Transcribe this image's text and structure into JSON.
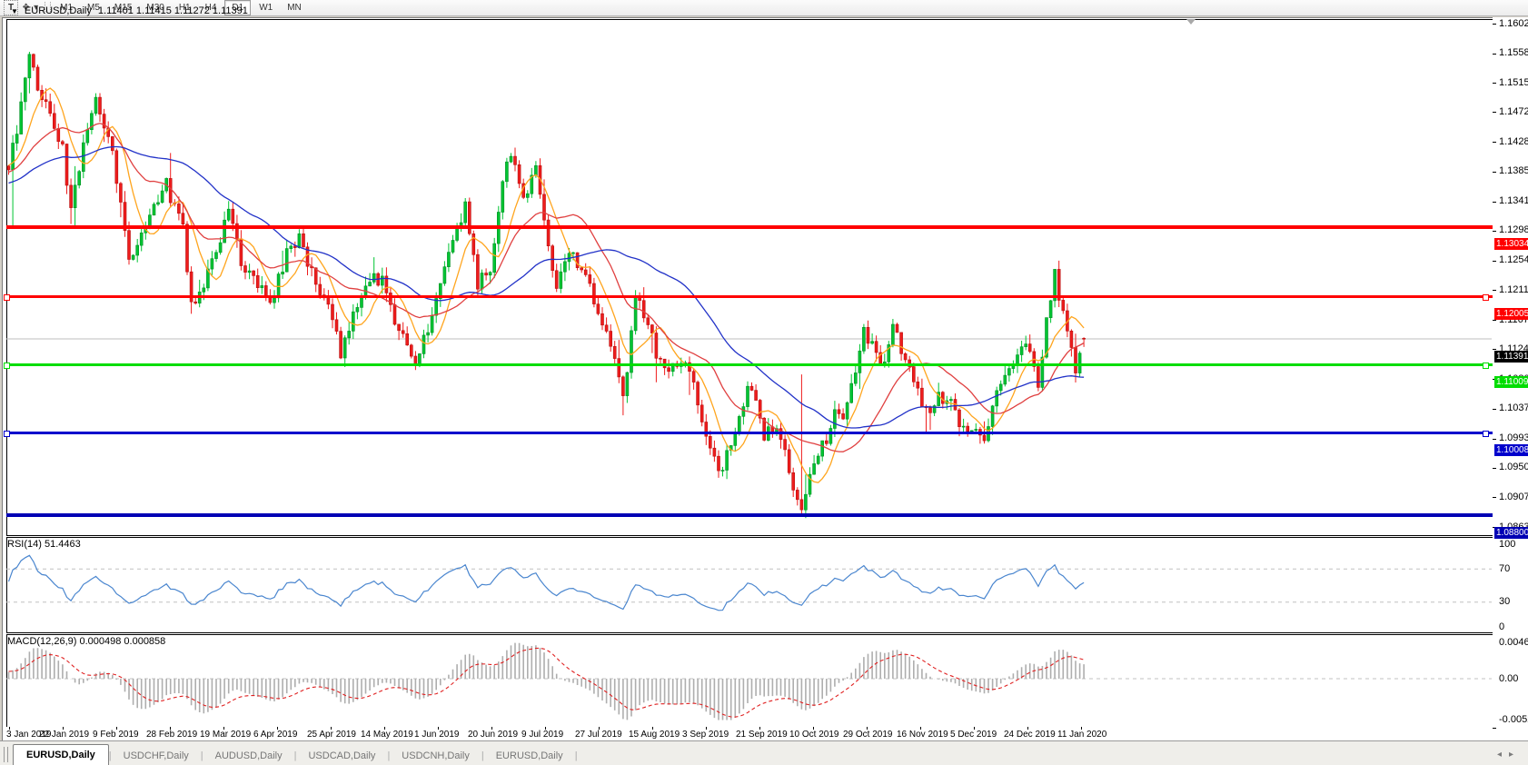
{
  "toolbar": {
    "text_tool_label": "T",
    "symbols_icon": "❖",
    "dropdown_caret": "▾",
    "timeframes": [
      "M1",
      "M5",
      "M15",
      "M30",
      "H1",
      "H4",
      "D1",
      "W1",
      "MN"
    ],
    "active_timeframe": "D1"
  },
  "chart_title": {
    "caret": "▼",
    "symbol": "EURUSD,Daily",
    "ohlc_text": "1.11401 1.11415 1.11272 1.11391"
  },
  "price_axis_ticks": [
    "1.16020",
    "1.15580",
    "1.15150",
    "1.14720",
    "1.14280",
    "1.13850",
    "1.13410",
    "1.12980",
    "1.12540",
    "1.12110",
    "1.11670",
    "1.11240",
    "1.10800",
    "1.10370",
    "1.09930",
    "1.09500",
    "1.09070",
    "1.08630"
  ],
  "rsi_pane": {
    "label": "RSI(14) 51.4463",
    "ticks": [
      "100",
      "70",
      "30",
      "0"
    ],
    "tick_values": [
      100,
      70,
      30,
      0
    ],
    "level_lines": [
      70,
      30
    ],
    "line_color": "#4a86cf",
    "current_value": 51.4463
  },
  "macd_pane": {
    "label": "MACD(12,26,9) 0.000498 0.000858",
    "ticks": [
      "0.00463",
      "0.00",
      "-0.00529"
    ],
    "tick_values": [
      0.00463,
      0.0,
      -0.00529
    ],
    "histogram_color": "#aeaeae",
    "signal_color": "#e02020",
    "current_main": 0.000498,
    "current_signal": 0.000858
  },
  "date_axis": {
    "labels": [
      "3 Jan 2019",
      "22 Jan 2019",
      "9 Feb 2019",
      "28 Feb 2019",
      "19 Mar 2019",
      "6 Apr 2019",
      "25 Apr 2019",
      "14 May 2019",
      "1 Jun 2019",
      "20 Jun 2019",
      "9 Jul 2019",
      "27 Jul 2019",
      "15 Aug 2019",
      "3 Sep 2019",
      "21 Sep 2019",
      "10 Oct 2019",
      "29 Oct 2019",
      "16 Nov 2019",
      "5 Dec 2019",
      "24 Dec 2019",
      "11 Jan 2020"
    ]
  },
  "tabs": {
    "items": [
      "EURUSD,Daily",
      "USDCHF,Daily",
      "AUDUSD,Daily",
      "USDCAD,Daily",
      "USDCNH,Daily",
      "EURUSD,Daily"
    ],
    "active_index": 0,
    "scroll_left": "◂",
    "scroll_right": "▸"
  },
  "chart_data": {
    "type": "candlestick_with_indicators",
    "symbol": "EURUSD",
    "timeframe": "Daily",
    "ohlc_display": {
      "open": 1.11401,
      "high": 1.11415,
      "low": 1.11272,
      "close": 1.11391
    },
    "price_axis_range": [
      1.0863,
      1.1602
    ],
    "bars": 260,
    "up_color": "#00c432",
    "up_border": "#008f24",
    "down_color": "#ee1c1c",
    "down_border": "#b80f0f",
    "price_path": [
      [
        0,
        1.1395
      ],
      [
        2,
        1.144
      ],
      [
        5,
        1.1555
      ],
      [
        7,
        1.15
      ],
      [
        10,
        1.1475
      ],
      [
        13,
        1.142
      ],
      [
        15,
        1.133
      ],
      [
        18,
        1.142
      ],
      [
        21,
        1.149
      ],
      [
        25,
        1.1405
      ],
      [
        29,
        1.1255
      ],
      [
        33,
        1.13
      ],
      [
        38,
        1.1365
      ],
      [
        42,
        1.1305
      ],
      [
        44,
        1.1185
      ],
      [
        49,
        1.125
      ],
      [
        53,
        1.133
      ],
      [
        56,
        1.125
      ],
      [
        59,
        1.1225
      ],
      [
        63,
        1.119
      ],
      [
        67,
        1.1265
      ],
      [
        70,
        1.129
      ],
      [
        74,
        1.122
      ],
      [
        77,
        1.118
      ],
      [
        80,
        1.112
      ],
      [
        83,
        1.118
      ],
      [
        86,
        1.122
      ],
      [
        90,
        1.123
      ],
      [
        94,
        1.115
      ],
      [
        98,
        1.1112
      ],
      [
        102,
        1.117
      ],
      [
        105,
        1.125
      ],
      [
        108,
        1.1305
      ],
      [
        110,
        1.1335
      ],
      [
        113,
        1.122
      ],
      [
        116,
        1.1245
      ],
      [
        119,
        1.138
      ],
      [
        121,
        1.1405
      ],
      [
        124,
        1.135
      ],
      [
        127,
        1.1385
      ],
      [
        130,
        1.128
      ],
      [
        132,
        1.1215
      ],
      [
        135,
        1.127
      ],
      [
        138,
        1.124
      ],
      [
        141,
        1.12
      ],
      [
        144,
        1.1145
      ],
      [
        146,
        1.111
      ],
      [
        148,
        1.1045
      ],
      [
        150,
        1.115
      ],
      [
        151,
        1.1195
      ],
      [
        153,
        1.1175
      ],
      [
        156,
        1.112
      ],
      [
        159,
        1.1095
      ],
      [
        162,
        1.111
      ],
      [
        165,
        1.107
      ],
      [
        168,
        1.1
      ],
      [
        171,
        1.0935
      ],
      [
        174,
        1.099
      ],
      [
        177,
        1.105
      ],
      [
        179,
        1.107
      ],
      [
        182,
        1.1
      ],
      [
        185,
        1.1015
      ],
      [
        188,
        1.095
      ],
      [
        190,
        1.09
      ],
      [
        191,
        1.0885
      ],
      [
        194,
        1.096
      ],
      [
        197,
        1.099
      ],
      [
        199,
        1.104
      ],
      [
        201,
        1.103
      ],
      [
        204,
        1.109
      ],
      [
        206,
        1.115
      ],
      [
        209,
        1.112
      ],
      [
        211,
        1.11
      ],
      [
        213,
        1.116
      ],
      [
        216,
        1.11
      ],
      [
        219,
        1.107
      ],
      [
        221,
        1.103
      ],
      [
        224,
        1.106
      ],
      [
        227,
        1.104
      ],
      [
        230,
        1.101
      ],
      [
        233,
        1.1005
      ],
      [
        235,
        1.0995
      ],
      [
        238,
        1.106
      ],
      [
        241,
        1.1095
      ],
      [
        244,
        1.112
      ],
      [
        246,
        1.113
      ],
      [
        248,
        1.1075
      ],
      [
        250,
        1.116
      ],
      [
        252,
        1.1235
      ],
      [
        253,
        1.119
      ],
      [
        255,
        1.1155
      ],
      [
        256,
        1.112
      ],
      [
        257,
        1.1085
      ],
      [
        258,
        1.111
      ],
      [
        259,
        1.1139
      ]
    ],
    "spikes": [
      {
        "i": 1,
        "low": 1.1302
      },
      {
        "i": 121,
        "high": 1.1412
      },
      {
        "i": 148,
        "low": 1.1027
      },
      {
        "i": 191,
        "high": 1.1087
      },
      {
        "i": 191,
        "low": 1.0879
      },
      {
        "i": 252,
        "high": 1.124
      }
    ],
    "moving_averages": [
      {
        "period": 8,
        "color": "#ffa51e"
      },
      {
        "period": 20,
        "color": "#e04040"
      },
      {
        "period": 45,
        "color": "#2232c8"
      }
    ],
    "horizontal_lines": [
      {
        "price_label": "1.13034",
        "value": 1.13034,
        "color": "#ff0000",
        "thickness": 4,
        "handles": false
      },
      {
        "price_label": "1.12005",
        "value": 1.12005,
        "color": "#ff0000",
        "thickness": 3,
        "handles": true
      },
      {
        "price_label": "1.11009",
        "value": 1.11009,
        "color": "#00dd00",
        "thickness": 3,
        "handles": true
      },
      {
        "price_label": "1.10008",
        "value": 1.10008,
        "color": "#0000cc",
        "thickness": 3,
        "handles": true
      },
      {
        "price_label": "1.08800",
        "value": 1.088,
        "color": "#0000b4",
        "thickness": 4,
        "handles": false
      }
    ],
    "current_price": {
      "label": "1.11391",
      "value": 1.11391,
      "tag_bg": "#000000",
      "tag_fg": "#ffffff",
      "line_color": "#bdbdbd"
    },
    "rsi": {
      "period": 14,
      "current": 51.4463,
      "range": [
        0,
        100
      ],
      "guide_levels": [
        70,
        30
      ]
    },
    "macd": {
      "fast": 12,
      "slow": 26,
      "signal": 9,
      "axis_max": 0.00463,
      "axis_min": -0.00529
    }
  }
}
